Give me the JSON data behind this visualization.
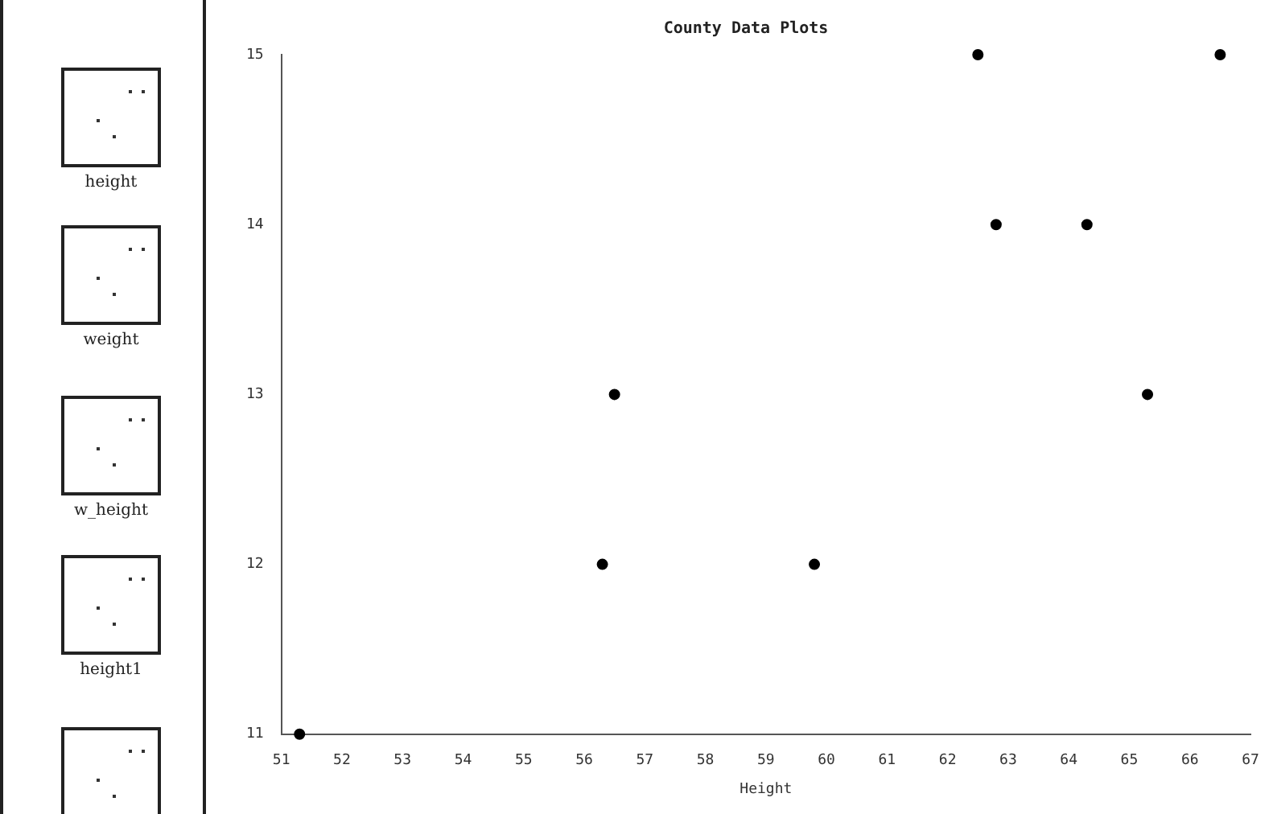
{
  "chart_data": {
    "type": "scatter",
    "title": "County Data Plots",
    "xlabel": "Height",
    "annotations": [
      "height",
      "weight",
      "w_height",
      "height1"
    ],
    "x": [
      51.3,
      56.3,
      56.5,
      59.8,
      62.5,
      62.8,
      64.3,
      65.3,
      66.5
    ],
    "series": [
      {
        "color": "#000000",
        "values": [
          11,
          12,
          13,
          12,
          15,
          14,
          14,
          13,
          15
        ]
      }
    ],
    "xlim": [
      51,
      67
    ],
    "xticks": [
      51,
      52,
      53,
      54,
      55,
      56,
      57,
      58,
      59,
      60,
      61,
      62,
      63,
      64,
      65,
      66,
      67
    ],
    "ylim": [
      11,
      15
    ],
    "yticks": [
      11,
      12,
      13,
      14,
      15
    ],
    "grid": false,
    "legend": false,
    "marker": "circle"
  }
}
